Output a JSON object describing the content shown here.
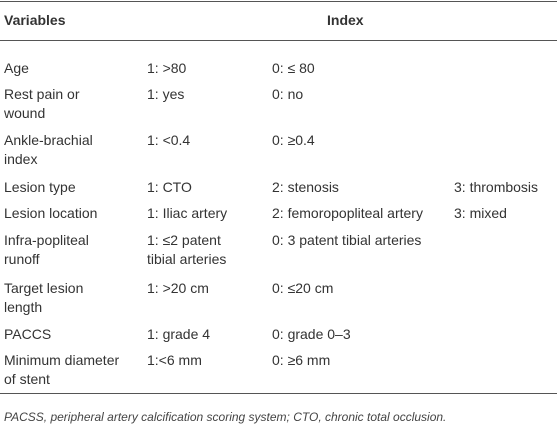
{
  "table": {
    "header": [
      "Variables",
      "Index"
    ],
    "rows": [
      [
        [
          "Age"
        ],
        [
          "1: >80"
        ],
        [
          "0: ≤ 80"
        ]
      ],
      [
        [
          "Rest pain or",
          "wound"
        ],
        [
          "1: yes"
        ],
        [
          "0: no"
        ]
      ],
      [
        [
          "Ankle-brachial",
          "index"
        ],
        [
          "1: <0.4"
        ],
        [
          "0: ≥0.4"
        ]
      ],
      [
        [
          "Lesion type"
        ],
        [
          "1: CTO"
        ],
        [
          "2: stenosis"
        ],
        [
          "3: thrombosis"
        ]
      ],
      [
        [
          "Lesion location"
        ],
        [
          "1: Iliac artery"
        ],
        [
          "2: femoropopliteal artery"
        ],
        [
          "3: mixed"
        ]
      ],
      [
        [
          "Infra-popliteal",
          "runoff"
        ],
        [
          "1: ≤2 patent",
          "tibial arteries"
        ],
        [
          "0: 3 patent tibial arteries"
        ]
      ],
      [
        [
          "Target lesion",
          "length"
        ],
        [
          "1: >20 cm"
        ],
        [
          "0: ≤20 cm"
        ]
      ],
      [
        [
          "PACCS"
        ],
        [
          "1: grade 4"
        ],
        [
          "0: grade 0–3"
        ]
      ],
      [
        [
          "Minimum diameter",
          "of stent"
        ],
        [
          "1:<6 mm"
        ],
        [
          "0: ≥6 mm"
        ]
      ]
    ],
    "footnote": "PACSS, peripheral artery calcification scoring system; CTO, chronic total occlusion."
  }
}
